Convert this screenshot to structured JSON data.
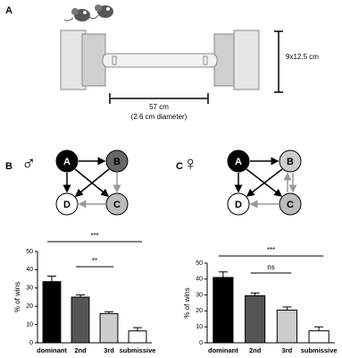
{
  "panels": {
    "a": {
      "label": "A",
      "height": "9x12.5 cm",
      "length": "57 cm",
      "diameter": "(2.6 cm diameter)"
    },
    "b": {
      "label": "B",
      "symbol": "♂",
      "nodes": [
        "A",
        "B",
        "C",
        "D"
      ]
    },
    "c": {
      "label": "C",
      "symbol": "♀",
      "nodes": [
        "A",
        "B",
        "C",
        "D"
      ]
    }
  },
  "chart_data": [
    {
      "type": "bar",
      "ylabel": "% of wins",
      "categories": [
        "dominant",
        "2nd",
        "3rd",
        "submissive"
      ],
      "values": [
        33.5,
        25,
        16,
        6.5
      ],
      "errors": [
        3,
        1.2,
        1,
        1.8
      ],
      "colors": [
        "#000000",
        "#555555",
        "#cccccc",
        "#ffffff"
      ],
      "ylim": [
        0,
        50
      ],
      "yticks": [
        0,
        10,
        20,
        30,
        40,
        50
      ],
      "annotations": [
        "***",
        "**"
      ]
    },
    {
      "type": "bar",
      "ylabel": "% of wins",
      "categories": [
        "dominant",
        "2nd",
        "3rd",
        "submissive"
      ],
      "values": [
        41,
        29.5,
        20.5,
        7.5
      ],
      "errors": [
        3.5,
        1.8,
        2,
        2.5
      ],
      "colors": [
        "#000000",
        "#555555",
        "#cccccc",
        "#ffffff"
      ],
      "ylim": [
        0,
        50
      ],
      "yticks": [
        0,
        10,
        20,
        30,
        40,
        50
      ],
      "annotations": [
        "***",
        "ns"
      ]
    }
  ]
}
